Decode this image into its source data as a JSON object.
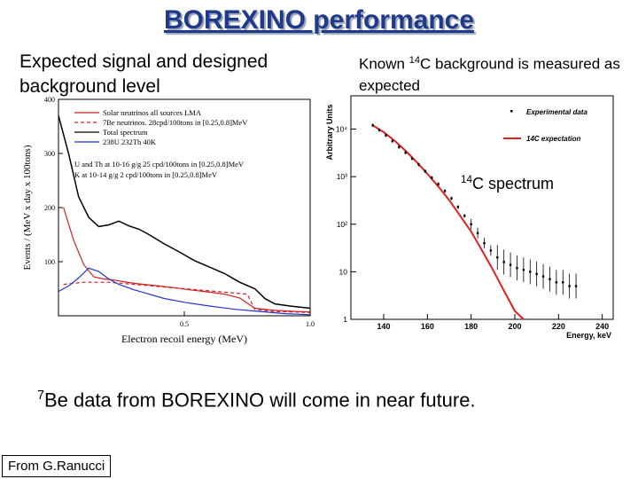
{
  "slide": {
    "title": "BOREXINO performance",
    "left_heading": "Expected signal and designed background level",
    "right_heading_sup": "14",
    "right_heading": "Known C background is measured as expected",
    "spectrum_label_sup": "14",
    "spectrum_label": "C spectrum",
    "footnote_sup": "7",
    "footnote": "Be data from BOREXINO will come in near future.",
    "credit": "From G.Ranucci"
  },
  "chart_data": [
    {
      "type": "line",
      "xlabel": "Electron recoil energy (MeV)",
      "ylabel": "Events / (MeV x day x 100tons)",
      "xlim": [
        0.0,
        1.0
      ],
      "ylim": [
        0,
        400
      ],
      "x_ticks": [
        "0.5",
        "1.0"
      ],
      "y_ticks": [
        "100",
        "200",
        "300",
        "400"
      ],
      "legend": [
        "Solar neutrinos all sources LMA",
        "7Be neutrinos. 28cpd/100tons in [0.25,0.8]MeV",
        "Total spectrum",
        "238U 232Th 40K",
        "U and Th at 10-16 g/g 25 cpd/100tons in [0.25,0.8]MeV",
        "K at 10-14 g/g 2 cpd/100tons in [0.25,0.8]MeV"
      ],
      "legend_position": "top-right",
      "colors": {
        "solar": "#d21f1f",
        "be7": "#d21f1f",
        "total": "#000000",
        "bkg": "#2233cc"
      },
      "series": [
        {
          "name": "Solar neutrinos all sources LMA",
          "x": [
            0.02,
            0.06,
            0.1,
            0.14,
            0.18,
            0.22,
            0.26,
            0.3,
            0.34,
            0.4,
            0.46,
            0.52,
            0.58,
            0.66,
            0.72,
            0.78,
            0.86,
            0.94,
            1.0
          ],
          "values": [
            200,
            140,
            95,
            72,
            68,
            66,
            63,
            60,
            58,
            55,
            52,
            48,
            45,
            40,
            33,
            14,
            10,
            8,
            7
          ]
        },
        {
          "name": "7Be neutrinos. 28cpd/100tons in [0.25,0.8]MeV",
          "x": [
            0.02,
            0.1,
            0.2,
            0.3,
            0.4,
            0.5,
            0.6,
            0.7,
            0.75,
            0.78,
            0.85,
            1.0
          ],
          "values": [
            58,
            62,
            62,
            58,
            54,
            50,
            46,
            42,
            40,
            12,
            8,
            6
          ]
        },
        {
          "name": "Total spectrum",
          "x": [
            0.0,
            0.04,
            0.08,
            0.12,
            0.16,
            0.2,
            0.24,
            0.28,
            0.32,
            0.36,
            0.42,
            0.48,
            0.54,
            0.6,
            0.66,
            0.72,
            0.78,
            0.82,
            0.86,
            0.92,
            1.0
          ],
          "values": [
            370,
            300,
            220,
            182,
            165,
            168,
            175,
            166,
            160,
            150,
            133,
            118,
            102,
            90,
            78,
            62,
            50,
            32,
            22,
            18,
            14
          ]
        },
        {
          "name": "238U 232Th 40K",
          "x": [
            0.0,
            0.04,
            0.08,
            0.12,
            0.16,
            0.2,
            0.24,
            0.3,
            0.36,
            0.42,
            0.5,
            0.6,
            0.7,
            0.8,
            0.9,
            1.0
          ],
          "values": [
            45,
            55,
            70,
            88,
            82,
            68,
            58,
            48,
            40,
            32,
            25,
            18,
            12,
            8,
            4,
            2
          ]
        }
      ]
    },
    {
      "type": "scatter",
      "xlabel": "Energy, keV",
      "ylabel": "Arbitrary Units",
      "xlim": [
        125,
        245
      ],
      "ylim_log10": [
        0,
        4.7
      ],
      "log_y": true,
      "x_ticks": [
        "140",
        "160",
        "180",
        "200",
        "220",
        "240"
      ],
      "y_ticks": [
        "1",
        "10",
        "10²",
        "10³",
        "10⁴"
      ],
      "legend": [
        "Experimental data",
        "14C expectation"
      ],
      "legend_position": "top-right",
      "colors": {
        "data": "#000000",
        "expectation": "#e02020"
      },
      "series": [
        {
          "name": "Experimental data",
          "x": [
            135,
            138,
            141,
            144,
            147,
            150,
            153,
            156,
            159,
            162,
            165,
            168,
            171,
            174,
            177,
            180,
            183,
            186,
            189,
            192,
            195,
            198,
            201,
            204,
            207,
            210,
            213,
            216,
            219,
            222,
            225,
            228
          ],
          "values": [
            12000,
            9500,
            7400,
            5600,
            4200,
            3200,
            2400,
            1800,
            1300,
            950,
            700,
            500,
            350,
            230,
            150,
            100,
            65,
            40,
            28,
            20,
            16,
            14,
            12,
            11,
            10,
            9,
            8,
            7,
            6,
            6,
            5,
            5
          ]
        },
        {
          "name": "14C expectation",
          "x": [
            135,
            140,
            145,
            150,
            155,
            160,
            165,
            170,
            175,
            180,
            185,
            190,
            195,
            200,
            204
          ],
          "values": [
            12000,
            8600,
            5700,
            3500,
            2050,
            1150,
            620,
            320,
            150,
            70,
            28,
            11,
            4,
            1.5,
            0.8
          ]
        }
      ]
    }
  ]
}
